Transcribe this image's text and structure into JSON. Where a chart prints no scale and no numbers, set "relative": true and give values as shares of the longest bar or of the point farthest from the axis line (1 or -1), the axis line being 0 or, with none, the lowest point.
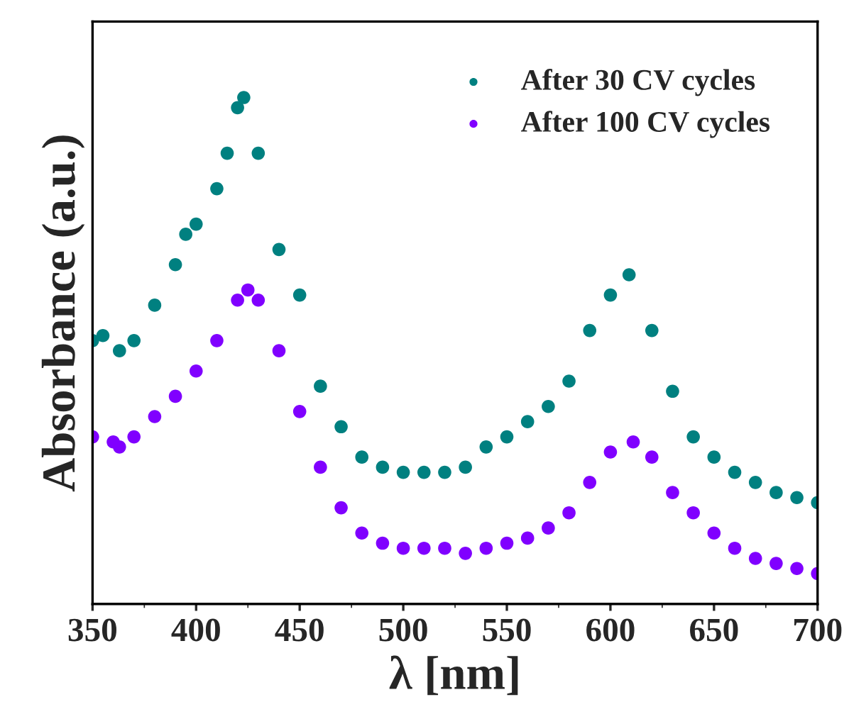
{
  "chart_data": {
    "type": "scatter",
    "xlabel": "λ [nm]",
    "ylabel": "Absorbance (a.u.)",
    "relative": true,
    "xlim": [
      350,
      700
    ],
    "xticks": [
      350,
      400,
      450,
      500,
      550,
      600,
      650,
      700
    ],
    "tick_labels": "x",
    "legend": "top right",
    "marker": "circle",
    "grid": false,
    "series": [
      {
        "name": "After 30 CV cycles",
        "color": "#008080",
        "x": [
          350,
          355,
          363,
          370,
          380,
          390,
          395,
          400,
          410,
          415,
          420,
          423,
          430,
          440,
          450,
          460,
          470,
          480,
          490,
          500,
          510,
          520,
          530,
          540,
          550,
          560,
          570,
          580,
          590,
          600,
          609,
          620,
          630,
          640,
          650,
          660,
          670,
          680,
          690,
          700
        ],
        "values": [
          0.52,
          0.53,
          0.5,
          0.52,
          0.59,
          0.67,
          0.73,
          0.75,
          0.82,
          0.89,
          0.98,
          1,
          0.89,
          0.7,
          0.61,
          0.43,
          0.35,
          0.29,
          0.27,
          0.26,
          0.26,
          0.26,
          0.27,
          0.31,
          0.33,
          0.36,
          0.39,
          0.44,
          0.54,
          0.61,
          0.65,
          0.54,
          0.42,
          0.33,
          0.29,
          0.26,
          0.24,
          0.22,
          0.21,
          0.2
        ]
      },
      {
        "name": "After 100 CV cycles",
        "color": "#8000ff",
        "x": [
          350,
          360,
          363,
          370,
          380,
          390,
          400,
          410,
          420,
          425,
          430,
          440,
          450,
          460,
          470,
          480,
          490,
          500,
          510,
          520,
          530,
          540,
          550,
          560,
          570,
          580,
          590,
          600,
          611,
          620,
          630,
          640,
          650,
          660,
          670,
          680,
          690,
          700
        ],
        "values": [
          0.33,
          0.32,
          0.31,
          0.33,
          0.37,
          0.41,
          0.46,
          0.52,
          0.6,
          0.62,
          0.6,
          0.5,
          0.38,
          0.27,
          0.19,
          0.14,
          0.12,
          0.11,
          0.11,
          0.11,
          0.1,
          0.11,
          0.12,
          0.13,
          0.15,
          0.18,
          0.24,
          0.3,
          0.32,
          0.29,
          0.22,
          0.18,
          0.14,
          0.11,
          0.09,
          0.08,
          0.07,
          0.06
        ]
      }
    ]
  }
}
